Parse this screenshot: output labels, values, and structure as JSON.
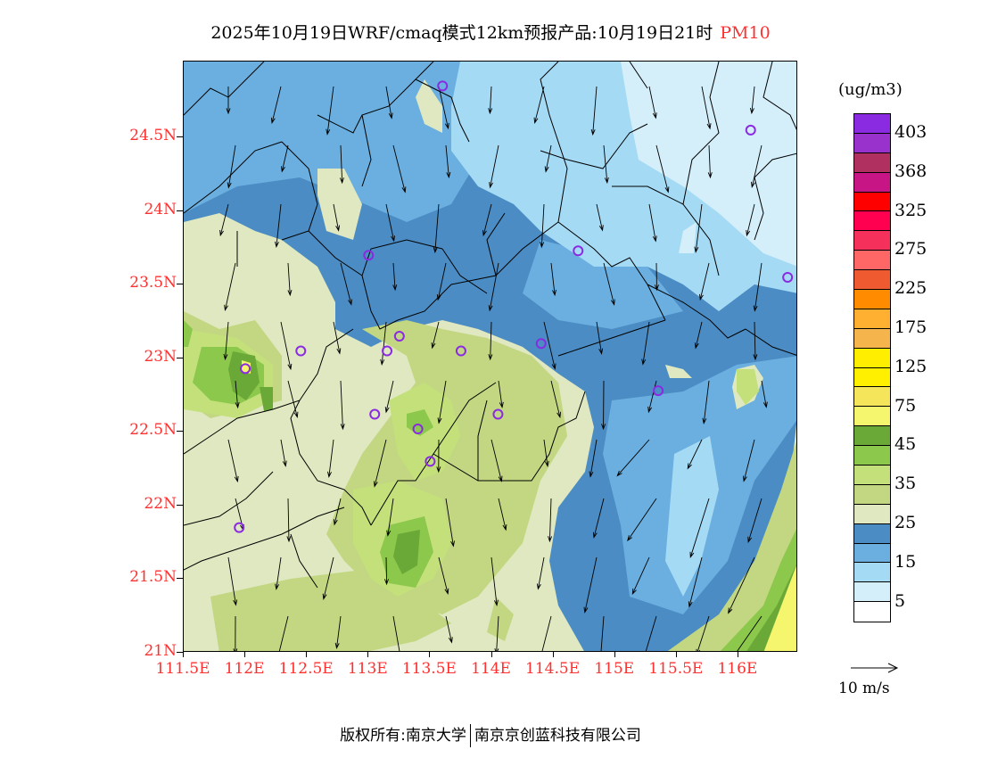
{
  "title": {
    "main": "2025年10月19日WRF/cmaq模式12km预报产品:10月19日21时",
    "pollutant": "PM10"
  },
  "axes": {
    "y_ticks": [
      "24.5N",
      "24N",
      "23.5N",
      "23N",
      "22.5N",
      "22N",
      "21.5N",
      "21N"
    ],
    "y_values": [
      24.5,
      24,
      23.5,
      23,
      22.5,
      22,
      21.5,
      21
    ],
    "x_ticks": [
      "111.5E",
      "112E",
      "112.5E",
      "113E",
      "113.5E",
      "114E",
      "114.5E",
      "115E",
      "115.5E",
      "116E"
    ],
    "x_values": [
      111.5,
      112,
      112.5,
      113,
      113.5,
      114,
      114.5,
      115,
      115.5,
      116
    ]
  },
  "colorbar": {
    "unit": "(ug/m3)",
    "colors": [
      "#8a2be2",
      "#9932cc",
      "#b03060",
      "#c71585",
      "#ff0000",
      "#ff0050",
      "#f5305a",
      "#ff6666",
      "#f05a30",
      "#ff8c00",
      "#ffb030",
      "#f5b44c",
      "#ffee00",
      "#fff000",
      "#f5e55a",
      "#f5f56e",
      "#6aa838",
      "#8cc84b",
      "#c3e07a",
      "#c3d782",
      "#dfe8c0",
      "#4a8cc3",
      "#6aafdf",
      "#a5daf5",
      "#d4eefa",
      "#ffffff"
    ],
    "labels": [
      "403",
      "368",
      "325",
      "275",
      "225",
      "175",
      "125",
      "75",
      "45",
      "35",
      "25",
      "15",
      "5"
    ]
  },
  "wind_reference": "10 m/s",
  "stations": [
    [
      113.6,
      24.85
    ],
    [
      116.1,
      24.55
    ],
    [
      113.0,
      23.7
    ],
    [
      114.7,
      23.73
    ],
    [
      116.4,
      23.55
    ],
    [
      112.45,
      23.05
    ],
    [
      113.15,
      23.05
    ],
    [
      113.25,
      23.15
    ],
    [
      113.75,
      23.05
    ],
    [
      114.4,
      23.1
    ],
    [
      112.0,
      22.93
    ],
    [
      115.35,
      22.78
    ],
    [
      113.05,
      22.62
    ],
    [
      114.05,
      22.62
    ],
    [
      113.4,
      22.52
    ],
    [
      113.5,
      22.3
    ],
    [
      111.95,
      21.85
    ]
  ],
  "footer": {
    "left": "版权所有:南京大学",
    "right": "南京京创蓝科技有限公司"
  }
}
